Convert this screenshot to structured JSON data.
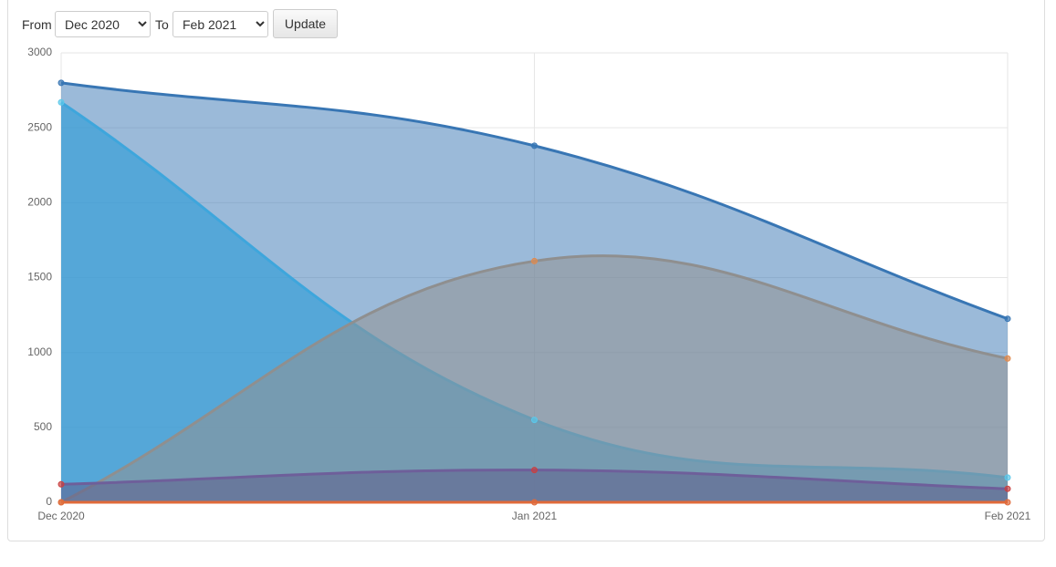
{
  "controls": {
    "from_label": "From",
    "from_value": "Dec 2020",
    "to_label": "To",
    "to_value": "Feb 2021",
    "button": "Update"
  },
  "chart_data": {
    "type": "area",
    "categories": [
      "Dec 2020",
      "Jan 2021",
      "Feb 2021"
    ],
    "series": [
      {
        "color": "#3876b4",
        "fill": "rgba(56,118,180,0.5)",
        "point_color": "#3876b4",
        "values": [
          2800,
          2380,
          1225
        ]
      },
      {
        "color": "#3ea6dc",
        "fill": "rgba(62,160,215,0.75)",
        "point_color": "#5bc8ea",
        "values": [
          2670,
          550,
          165
        ]
      },
      {
        "color": "#8f8f8f",
        "fill": "rgba(145,145,145,0.55)",
        "point_color": "#e08a4e",
        "values": [
          0,
          1610,
          960
        ]
      },
      {
        "color": "#6e5f9a",
        "fill": "rgba(95,95,140,0.55)",
        "point_color": "#c94040",
        "values": [
          120,
          215,
          90
        ]
      },
      {
        "color": "#e06a3a",
        "fill": "rgba(224,106,58,0.4)",
        "point_color": "#e06a3a",
        "values": [
          0,
          0,
          0
        ]
      }
    ],
    "ylim": [
      0,
      3000
    ],
    "yticks": [
      0,
      500,
      1000,
      1500,
      2000,
      2500,
      3000
    ],
    "grid": true
  }
}
